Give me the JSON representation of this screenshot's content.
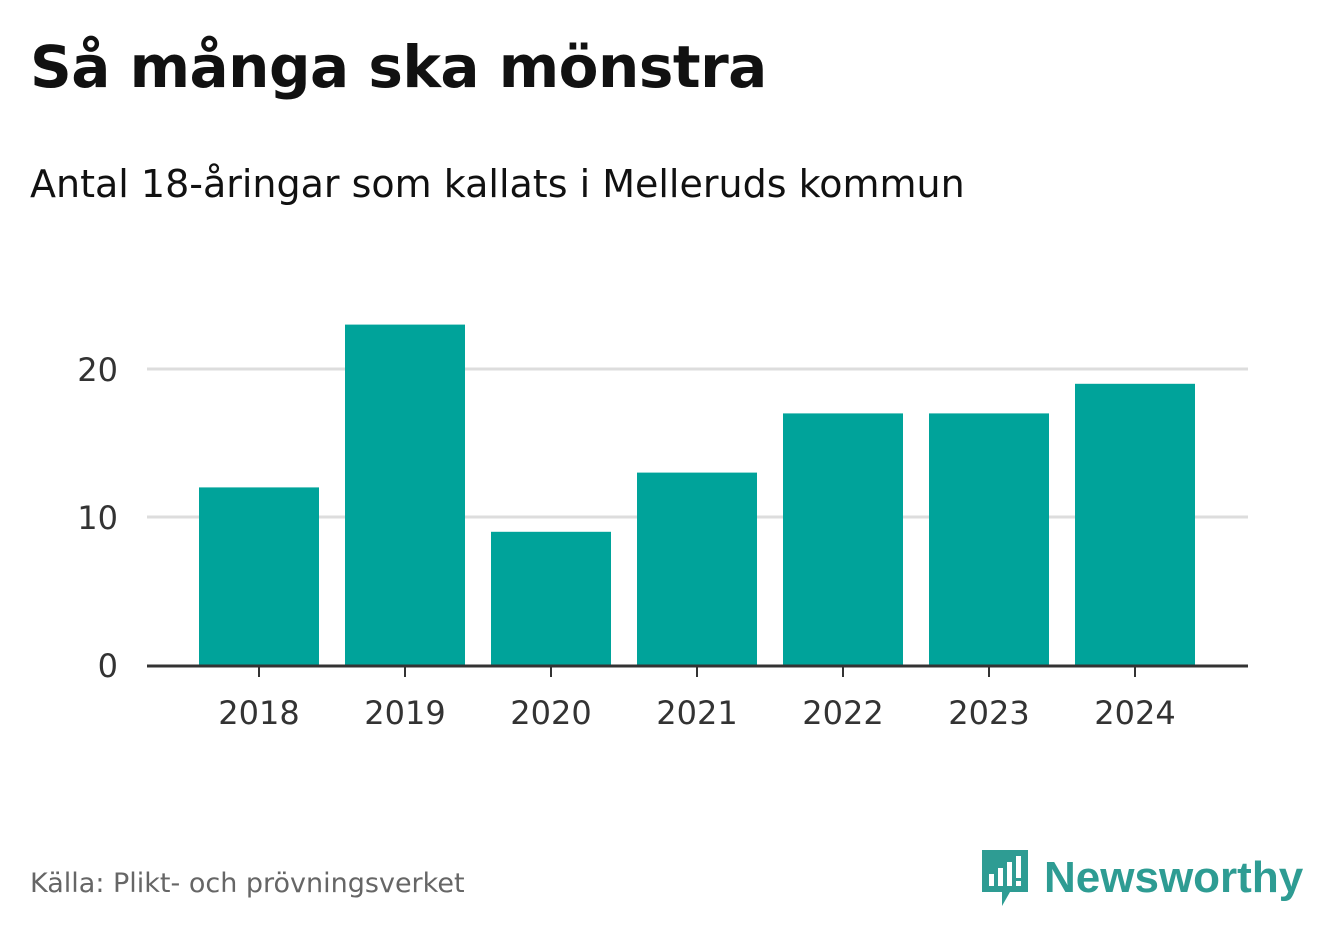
{
  "header": {
    "title": "Så många ska mönstra",
    "subtitle": "Antal 18-åringar som kallats i Melleruds kommun"
  },
  "footer": {
    "source": "Källa: Plikt- och prövningsverket",
    "brand": "Newsworthy",
    "brand_color": "#2e9c93"
  },
  "chart_data": {
    "type": "bar",
    "title": "Så många ska mönstra",
    "subtitle": "Antal 18-åringar som kallats i Melleruds kommun",
    "categories": [
      "2018",
      "2019",
      "2020",
      "2021",
      "2022",
      "2023",
      "2024"
    ],
    "values": [
      12,
      23,
      9,
      13,
      17,
      17,
      19
    ],
    "xlabel": "",
    "ylabel": "",
    "ylim": [
      0,
      24
    ],
    "yticks": [
      0,
      10,
      20
    ],
    "grid": true,
    "legend": "none",
    "bar_color": "#00a39a",
    "grid_color": "#dddddd",
    "axis_color": "#333333"
  }
}
